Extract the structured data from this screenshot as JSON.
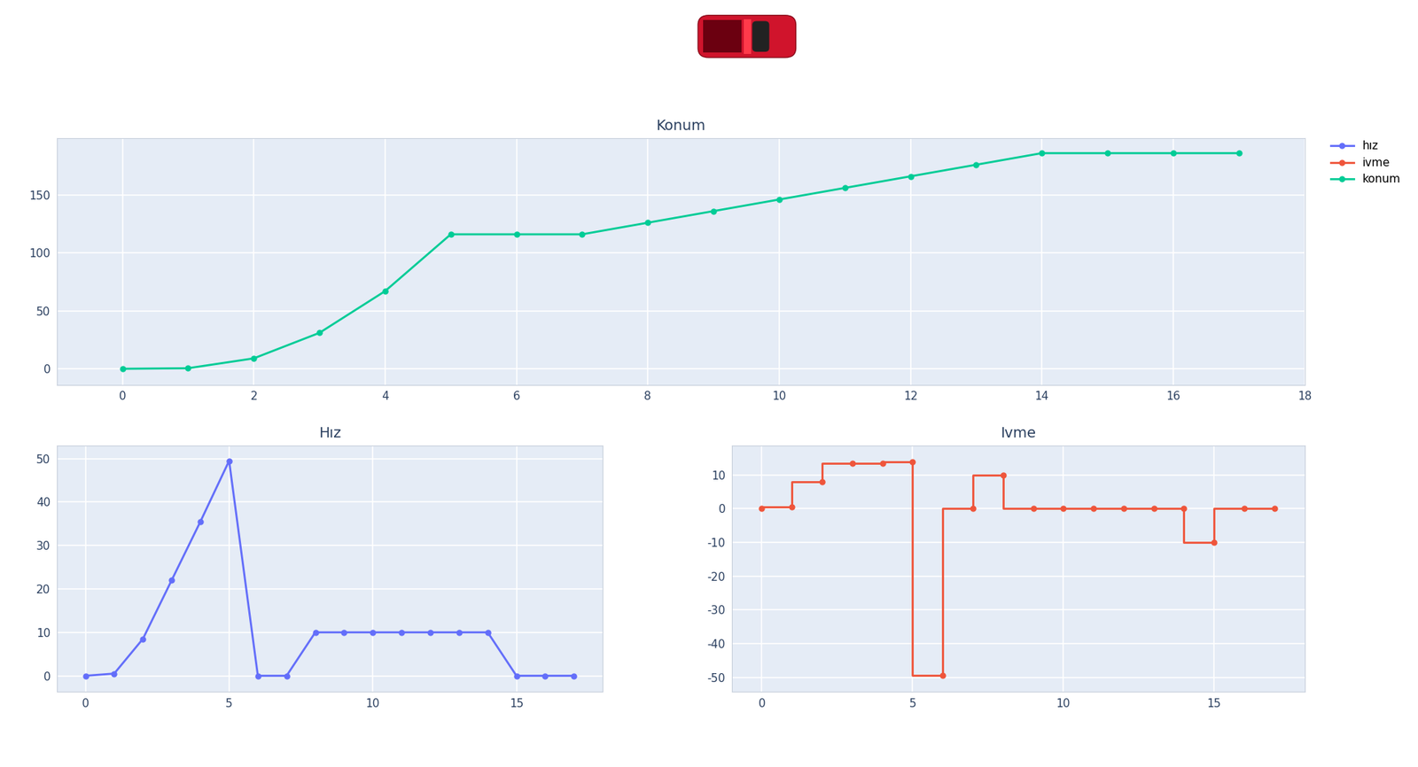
{
  "chart_data": [
    {
      "type": "line",
      "title": "Hız",
      "x": [
        0,
        1,
        2,
        3,
        4,
        5,
        6,
        7,
        8,
        9,
        10,
        11,
        12,
        13,
        14,
        15,
        16,
        17
      ],
      "series": [
        {
          "name": "hız",
          "color": "#636efa",
          "marker": "circle",
          "line_style": "solid",
          "values": [
            0,
            0.5,
            8.5,
            22,
            35.5,
            49.5,
            0,
            0,
            10,
            10,
            10,
            10,
            10,
            10,
            10,
            0,
            0,
            0
          ]
        }
      ],
      "xlim": [
        -1,
        18
      ],
      "xticks": [
        0,
        5,
        10,
        15
      ],
      "ylim": [
        -3.7,
        53
      ],
      "yticks": [
        0,
        10,
        20,
        30,
        40,
        50
      ],
      "grid": true
    },
    {
      "type": "line",
      "title": "Ivme",
      "x": [
        0,
        1,
        2,
        3,
        4,
        5,
        6,
        7,
        8,
        9,
        10,
        11,
        12,
        13,
        14,
        15,
        16,
        17
      ],
      "series": [
        {
          "name": "ivme",
          "color": "#EF553B",
          "marker": "circle",
          "line_style": "step",
          "values": [
            0,
            0.5,
            8,
            13.5,
            13.5,
            14,
            -49.5,
            0,
            10,
            0,
            0,
            0,
            0,
            0,
            0,
            -10,
            0,
            0
          ]
        }
      ],
      "xlim": [
        -1,
        18
      ],
      "xticks": [
        0,
        5,
        10,
        15
      ],
      "ylim": [
        -54.3,
        18.7
      ],
      "yticks": [
        -50,
        -40,
        -30,
        -20,
        -10,
        0,
        10
      ],
      "grid": true
    },
    {
      "type": "line",
      "title": "Konum",
      "x": [
        0,
        1,
        2,
        3,
        4,
        5,
        6,
        7,
        8,
        9,
        10,
        11,
        12,
        13,
        14,
        15,
        16,
        17
      ],
      "series": [
        {
          "name": "konum",
          "color": "#00cc96",
          "marker": "circle",
          "line_style": "solid",
          "values": [
            0,
            0.5,
            9,
            31,
            67,
            116,
            116,
            116,
            126,
            136,
            146,
            156,
            166,
            176,
            186,
            186,
            186,
            186
          ]
        }
      ],
      "xlim": [
        -1,
        18
      ],
      "xticks": [
        0,
        2,
        4,
        6,
        8,
        10,
        12,
        14,
        16,
        18
      ],
      "ylim": [
        -14,
        199
      ],
      "yticks": [
        0,
        50,
        100,
        150
      ],
      "grid": true,
      "legend": "upper right"
    }
  ]
}
